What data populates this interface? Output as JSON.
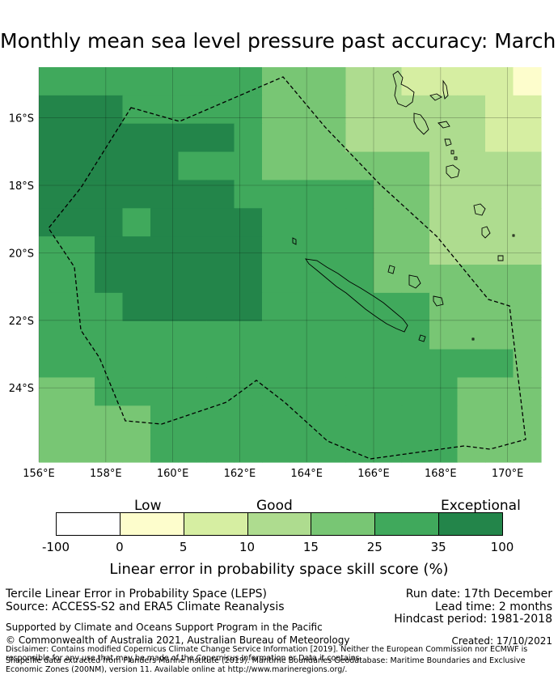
{
  "title": "Monthly mean sea level pressure past accuracy: March - June",
  "map": {
    "lon_range": [
      156,
      171
    ],
    "lat_range": [
      -26.2,
      -14.5
    ],
    "grid_cell_deg": 0.8,
    "x_ticks": [
      "156°E",
      "158°E",
      "160°E",
      "162°E",
      "164°E",
      "166°E",
      "168°E",
      "170°E"
    ],
    "y_ticks": [
      "16°S",
      "18°S",
      "20°S",
      "22°S",
      "24°S"
    ],
    "colors": {
      "dark": "#23854a",
      "mid": "#40a95c",
      "light": "#78c674",
      "pale": "#aedc8f",
      "lime": "#d6eea2",
      "cream": "#fdfdcc",
      "coast": "#000000",
      "eez": "#000000"
    }
  },
  "colorbar": {
    "category_labels": [
      "Low",
      "Good",
      "Exceptional"
    ],
    "ticks": [
      "-100",
      "0",
      "5",
      "10",
      "15",
      "25",
      "35",
      "100"
    ],
    "colors": [
      "#ffffff",
      "#fdfdcc",
      "#d6eea2",
      "#aedc8f",
      "#78c674",
      "#40a95c",
      "#23854a"
    ],
    "caption": "Linear error in probability space skill score (%)"
  },
  "footer": {
    "line1_left": "Tercile Linear Error in Probability Space (LEPS)",
    "line2_left": "Source: ACCESS-S2 and ERA5 Climate Reanalysis",
    "line1_right": "Run date: 17th December",
    "line2_right": "Lead time: 2 months",
    "line3_right": "Hindcast period: 1981-2018",
    "support": "Supported by Climate and Oceans Support Program in the Pacific",
    "copyright": "© Commonwealth of Australia 2021, Australian Bureau of Meteorology",
    "created": "Created: 17/10/2021",
    "disclaimer": "Disclaimer: Contains modified Copernicus Climate Change Service Information [2019]. Neither the European Commission nor ECMWF is responsible for any use that may be made of the Copernicus Information or Data it contains.",
    "shapefile": "Shapefile data extracted from Flanders Marine Institute (2019). Maritime Boundaries Geodatabase: Maritime Boundaries and Exclusive Economic Zones (200NM), version 11. Available online at http://www.marineregions.org/."
  }
}
